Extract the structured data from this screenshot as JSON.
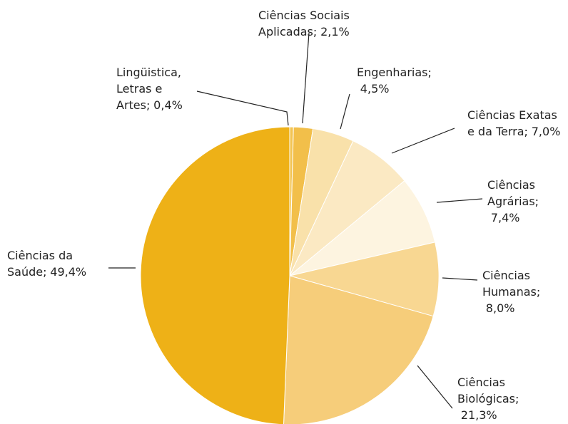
{
  "chart_data": {
    "type": "pie",
    "categories": [
      "Lingüistica, Letras e Artes;",
      "Ciências Sociais Aplicadas;",
      "Engenharias;",
      "Ciências Exatas e da Terra;",
      "Ciências Agrárias;",
      "Ciências Humanas;",
      "Ciências Biológicas;",
      "Ciências da Saúde;"
    ],
    "values": [
      0.4,
      2.1,
      4.5,
      7.0,
      7.4,
      8.0,
      21.3,
      49.4
    ],
    "value_labels": [
      "0,4%",
      "2,1%",
      "4,5%",
      "7,0%",
      "7,4%",
      "8,0%",
      "21,3%",
      "49,4%"
    ],
    "colors": [
      "#f3c452",
      "#f2bf4a",
      "#f9e1aa",
      "#fbe9c3",
      "#fdf4e0",
      "#f8d792",
      "#f6cd7a",
      "#eeb117"
    ]
  }
}
